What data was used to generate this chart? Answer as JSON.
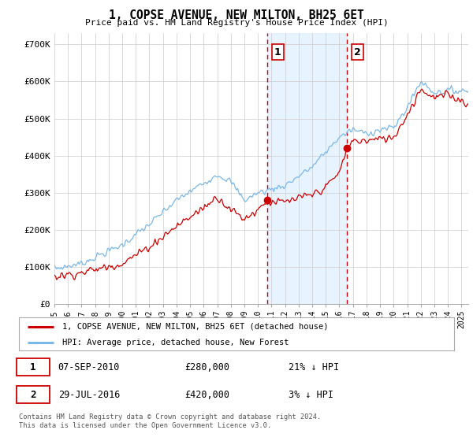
{
  "title": "1, COPSE AVENUE, NEW MILTON, BH25 6ET",
  "subtitle": "Price paid vs. HM Land Registry's House Price Index (HPI)",
  "ylabel_ticks": [
    "£0",
    "£100K",
    "£200K",
    "£300K",
    "£400K",
    "£500K",
    "£600K",
    "£700K"
  ],
  "ytick_values": [
    0,
    100000,
    200000,
    300000,
    400000,
    500000,
    600000,
    700000
  ],
  "ylim": [
    0,
    730000
  ],
  "xlim_start": 1995.0,
  "xlim_end": 2025.5,
  "sale1_date": 2010.69,
  "sale1_price": 280000,
  "sale1_label": "1",
  "sale2_date": 2016.58,
  "sale2_price": 420000,
  "sale2_label": "2",
  "hpi_color": "#7ab8e8",
  "price_color": "#cc0000",
  "sale_dot_color": "#cc0000",
  "vline_color": "#cc0000",
  "legend_label_price": "1, COPSE AVENUE, NEW MILTON, BH25 6ET (detached house)",
  "legend_label_hpi": "HPI: Average price, detached house, New Forest",
  "footnote": "Contains HM Land Registry data © Crown copyright and database right 2024.\nThis data is licensed under the Open Government Licence v3.0.",
  "background_color": "#ffffff",
  "shading_color": "#ddeeff"
}
